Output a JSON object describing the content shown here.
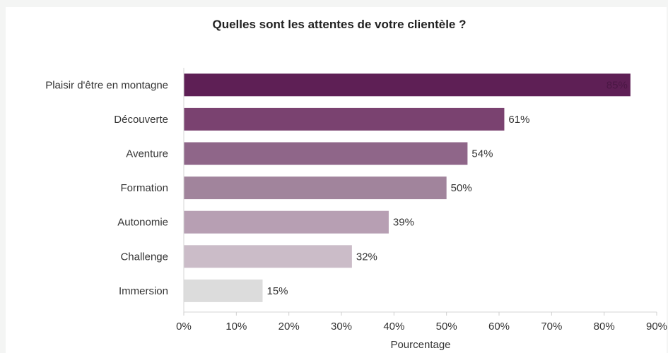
{
  "chart_data": {
    "type": "bar",
    "orientation": "horizontal",
    "title": "Quelles sont les attentes de votre clientèle ?",
    "xlabel": "Pourcentage",
    "ylabel": "",
    "xlim": [
      0,
      90
    ],
    "x_ticks": [
      "0%",
      "10%",
      "20%",
      "30%",
      "40%",
      "50%",
      "60%",
      "70%",
      "80%",
      "90%"
    ],
    "grid": false,
    "categories": [
      "Plaisir d'être en montagne",
      "Découverte",
      "Aventure",
      "Formation",
      "Autonomie",
      "Challenge",
      "Immersion"
    ],
    "values": [
      85,
      61,
      54,
      50,
      39,
      32,
      15
    ],
    "value_labels": [
      "85%",
      "61%",
      "54%",
      "50%",
      "39%",
      "32%",
      "15%"
    ],
    "colors": [
      "#5e1f55",
      "#7a4270",
      "#8f6689",
      "#a1849c",
      "#b79fb3",
      "#cbbcc8",
      "#dcdcdc"
    ],
    "label_colors": [
      "#4a1744",
      "#333333",
      "#333333",
      "#333333",
      "#333333",
      "#333333",
      "#333333"
    ]
  }
}
